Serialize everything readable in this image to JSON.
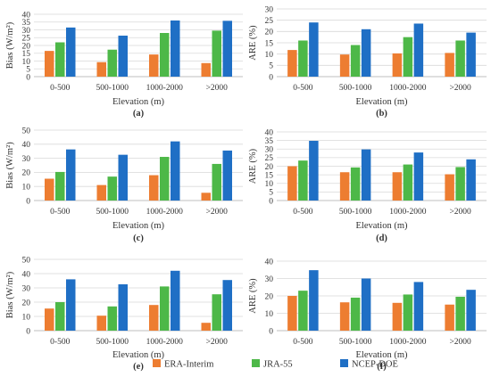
{
  "colors": {
    "ERA-Interim": "#ed7d31",
    "JRA-55": "#4db848",
    "NCEP-DOE": "#1f6fc5",
    "grid": "#d9d9d9",
    "axis": "#bfbfbf"
  },
  "legend": [
    "ERA-Interim",
    "JRA-55",
    "NCEP-DOE"
  ],
  "chart_data": [
    {
      "type": "bar",
      "panel": "(a)",
      "categories": [
        "0-500",
        "500-1000",
        "1000-2000",
        ">2000"
      ],
      "series": [
        {
          "name": "ERA-Interim",
          "values": [
            16.5,
            9.3,
            14.2,
            8.7
          ]
        },
        {
          "name": "JRA-55",
          "values": [
            22.0,
            17.3,
            28.0,
            29.5
          ]
        },
        {
          "name": "NCEP-DOE",
          "values": [
            31.5,
            26.3,
            36.0,
            35.8
          ]
        }
      ],
      "xlabel": "Elevation (m)",
      "ylabel": "Bias (W/m²)",
      "ylim": [
        0,
        40
      ],
      "yticks": [
        0,
        5,
        10,
        15,
        20,
        25,
        30,
        35,
        40
      ],
      "grid": true
    },
    {
      "type": "bar",
      "panel": "(b)",
      "categories": [
        "0-500",
        "500-1000",
        "1000-2000",
        ">2000"
      ],
      "series": [
        {
          "name": "ERA-Interim",
          "values": [
            11.8,
            9.8,
            10.3,
            10.5
          ]
        },
        {
          "name": "JRA-55",
          "values": [
            16.0,
            14.0,
            17.5,
            16.0
          ]
        },
        {
          "name": "NCEP-DOE",
          "values": [
            24.0,
            21.0,
            23.5,
            19.5
          ]
        }
      ],
      "xlabel": "Elevation (m)",
      "ylabel": "ARE (%)",
      "ylim": [
        0,
        30
      ],
      "yticks": [
        0,
        5,
        10,
        15,
        20,
        25,
        30
      ],
      "grid": true
    },
    {
      "type": "bar",
      "panel": "(c)",
      "categories": [
        "0-500",
        "500-1000",
        "1000-2000",
        ">2000"
      ],
      "series": [
        {
          "name": "ERA-Interim",
          "values": [
            15.5,
            11.0,
            18.0,
            5.5
          ]
        },
        {
          "name": "JRA-55",
          "values": [
            20.3,
            17.0,
            31.0,
            26.0
          ]
        },
        {
          "name": "NCEP-DOE",
          "values": [
            36.3,
            32.5,
            42.0,
            35.5
          ]
        }
      ],
      "xlabel": "Elevation (m)",
      "ylabel": "Bias (W/m²)",
      "ylim": [
        0,
        50
      ],
      "yticks": [
        0,
        10,
        20,
        30,
        40,
        50
      ],
      "grid": true
    },
    {
      "type": "bar",
      "panel": "(d)",
      "categories": [
        "0-500",
        "500-1000",
        "1000-2000",
        ">2000"
      ],
      "series": [
        {
          "name": "ERA-Interim",
          "values": [
            20.0,
            16.5,
            16.5,
            15.3
          ]
        },
        {
          "name": "JRA-55",
          "values": [
            23.3,
            19.3,
            21.0,
            19.5
          ]
        },
        {
          "name": "NCEP-DOE",
          "values": [
            34.8,
            29.8,
            28.0,
            24.0
          ]
        }
      ],
      "xlabel": "Elevation (m)",
      "ylabel": "ARE (%)",
      "ylim": [
        0,
        40
      ],
      "yticks": [
        0,
        5,
        10,
        15,
        20,
        25,
        30,
        35,
        40
      ],
      "grid": true
    },
    {
      "type": "bar",
      "panel": "(e)",
      "categories": [
        "0-500",
        "500-1000",
        "1000-2000",
        ">2000"
      ],
      "series": [
        {
          "name": "ERA-Interim",
          "values": [
            15.5,
            10.5,
            18.0,
            5.5
          ]
        },
        {
          "name": "JRA-55",
          "values": [
            20.0,
            17.0,
            31.0,
            25.5
          ]
        },
        {
          "name": "NCEP-DOE",
          "values": [
            36.0,
            32.5,
            42.0,
            35.5
          ]
        }
      ],
      "xlabel": "Elevation (m)",
      "ylabel": "Bias (W/m²)",
      "ylim": [
        0,
        50
      ],
      "yticks": [
        0,
        10,
        20,
        30,
        40,
        50
      ],
      "grid": true
    },
    {
      "type": "bar",
      "panel": "(f)",
      "categories": [
        "0-500",
        "500-1000",
        "1000-2000",
        ">2000"
      ],
      "series": [
        {
          "name": "ERA-Interim",
          "values": [
            20.0,
            16.3,
            16.0,
            15.0
          ]
        },
        {
          "name": "JRA-55",
          "values": [
            23.0,
            19.0,
            20.8,
            19.5
          ]
        },
        {
          "name": "NCEP-DOE",
          "values": [
            34.8,
            30.0,
            28.0,
            23.5
          ]
        }
      ],
      "xlabel": "Elevation (m)",
      "ylabel": "ARE (%)",
      "ylim": [
        0,
        40
      ],
      "yticks": [
        0,
        10,
        20,
        30,
        40
      ],
      "grid": true
    }
  ]
}
